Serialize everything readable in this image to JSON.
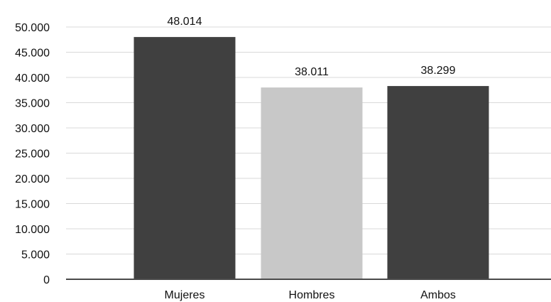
{
  "chart_data": {
    "type": "bar",
    "title": "",
    "xlabel": "",
    "ylabel": "",
    "categories": [
      "Mujeres",
      "Hombres",
      "Ambos"
    ],
    "values": [
      48014,
      38011,
      38299
    ],
    "value_labels": [
      "48.014",
      "38.011",
      "38.299"
    ],
    "bar_colors": [
      "#404040",
      "#c8c8c8",
      "#404040"
    ],
    "ylim": [
      0,
      50000
    ],
    "yticks": [
      0,
      5000,
      10000,
      15000,
      20000,
      25000,
      30000,
      35000,
      40000,
      45000,
      50000
    ],
    "ytick_labels": [
      "0",
      "5.000",
      "10.000",
      "15.000",
      "20.000",
      "25.000",
      "30.000",
      "35.000",
      "40.000",
      "45.000",
      "50.000"
    ],
    "grid": true,
    "legend": "none"
  }
}
